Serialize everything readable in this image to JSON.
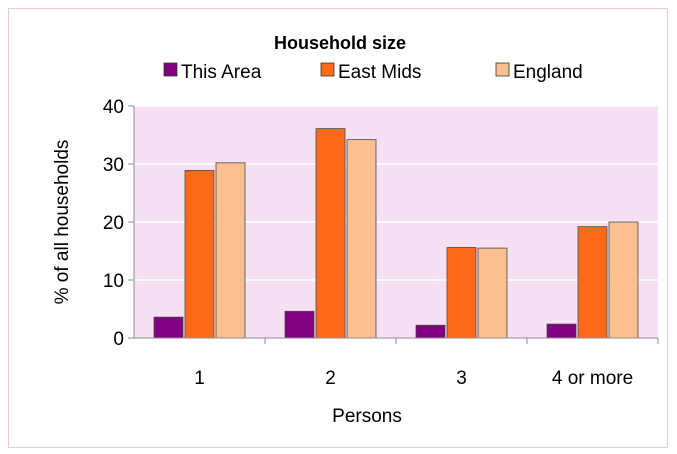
{
  "chart_data": {
    "type": "bar",
    "title": "Household size",
    "xlabel": "Persons",
    "ylabel": "% of all households",
    "categories": [
      "1",
      "2",
      "3",
      "4 or more"
    ],
    "ylim": [
      0,
      40
    ],
    "yticks": [
      0,
      10,
      20,
      30,
      40
    ],
    "grid": true,
    "legend_position": "top",
    "series": [
      {
        "name": "This Area",
        "color": "#800080",
        "values": [
          3.6,
          4.6,
          2.2,
          2.4
        ]
      },
      {
        "name": "East Mids",
        "color": "#ff6a1a",
        "values": [
          28.9,
          36.1,
          15.6,
          19.2
        ]
      },
      {
        "name": "England",
        "color": "#fac090",
        "values": [
          30.2,
          34.2,
          15.5,
          20.0
        ]
      }
    ],
    "plot_background": "#f5e1f3",
    "gridline_color": "#ffffff"
  }
}
